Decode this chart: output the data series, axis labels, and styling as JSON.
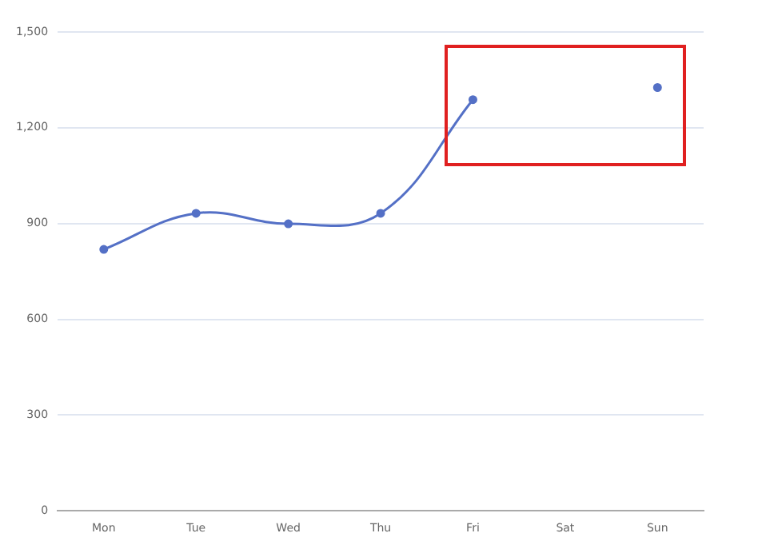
{
  "chart_data": {
    "type": "line",
    "categories": [
      "Mon",
      "Tue",
      "Wed",
      "Thu",
      "Fri",
      "Sat",
      "Sun"
    ],
    "series": [
      {
        "color": "#5470c6",
        "values": [
          819,
          932,
          899,
          932,
          1288,
          null,
          1326
        ]
      }
    ],
    "ylim": [
      0,
      1500
    ],
    "yticks": [
      0,
      300,
      600,
      900,
      {
        "value": 1200,
        "label": "1,200"
      },
      {
        "value": 1500,
        "label": "1,500"
      }
    ],
    "grid": "y",
    "legend": false,
    "marker": "circle",
    "line_style": "solid"
  }
}
